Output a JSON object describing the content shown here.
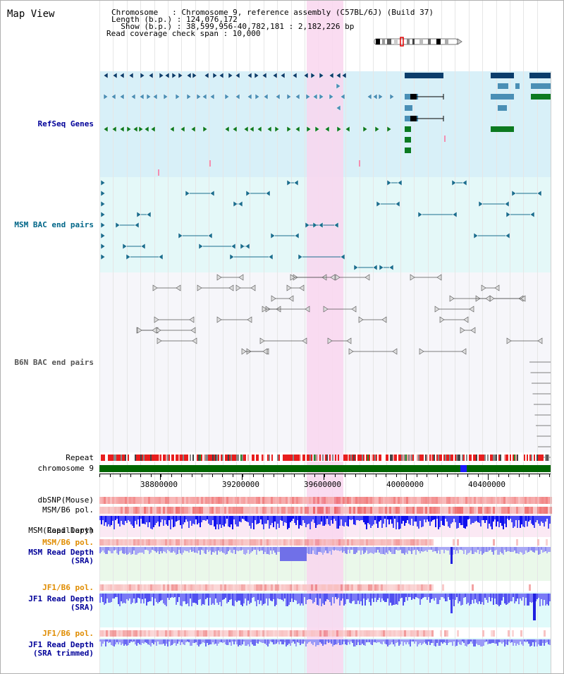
{
  "title": "Map View",
  "info": {
    "chromosome_line": "Chromosome   : Chromosome 9, reference assembly (C57BL/6J) (Build 37)",
    "length_line": "Length (b.p.) : 124,076,172",
    "show_line": "  Show (b.p.) : 38,599,956-40,782,181 : 2,182,226 bp",
    "coverage_line": "Read coverage check span : 10,000"
  },
  "tracks": {
    "refseq": "RefSeq Genes",
    "msm_bac": "MSM BAC end pairs",
    "b6n_bac": "B6N BAC end pairs",
    "repeat": "Repeat",
    "chromosome": "chromosome 9",
    "dbsnp": "dbSNP(Mouse)",
    "msm_b6_pol": "MSM/B6 pol.",
    "msm_read_depth_cap_1": "MSM Read Depth",
    "msm_read_depth_cap_2": "(Capillary)",
    "msm_b6_pol_2": "MSM/B6 pol.",
    "msm_read_depth_sra_1": "MSM Read Depth",
    "msm_read_depth_sra_2": "(SRA)",
    "jf1_b6_pol": "JF1/B6 pol.",
    "jf1_read_depth_sra_1": "JF1 Read Depth",
    "jf1_read_depth_sra_2": "(SRA)",
    "jf1_b6_pol_2": "JF1/B6 pol.",
    "jf1_read_depth_trim_1": "JF1 Read Depth",
    "jf1_read_depth_trim_2": "(SRA trimmed)"
  },
  "axis": {
    "ticks": [
      "38800000",
      "39200000",
      "39600000",
      "40000000",
      "40400000"
    ]
  },
  "colors": {
    "refseq_bg": "#d8f0f8",
    "msm_bac_bg": "#e4f8f8",
    "b6n_bac_bg": "#f6f6fa",
    "highlight": "#f9d6ef",
    "chromosome_green": "#006600",
    "refseq_label": "#000099",
    "msm_label": "#006688",
    "b6n_label": "#555555",
    "pol_label": "#e08c00",
    "depth_label": "#000099"
  }
}
